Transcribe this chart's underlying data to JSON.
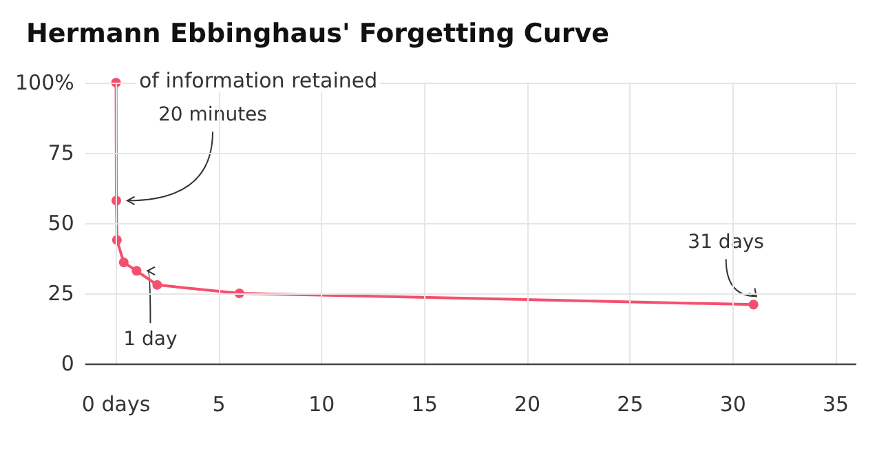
{
  "chart_data": {
    "type": "line",
    "title": "Hermann Ebbinghaus' Forgetting Curve",
    "ylabel": "of information retained",
    "x": [
      0,
      0.014,
      0.042,
      0.375,
      1,
      2,
      6,
      31
    ],
    "series": [
      {
        "color": "#f4506e",
        "values": [
          100,
          58,
          44,
          36,
          33,
          28,
          25,
          21
        ]
      }
    ],
    "xlim": [
      -1.5,
      36
    ],
    "xticks": [
      {
        "value": 0,
        "label": "0 days"
      },
      5,
      10,
      15,
      20,
      25,
      30,
      35
    ],
    "ylim": [
      0,
      100
    ],
    "yticks": [
      0,
      25,
      50,
      75,
      {
        "value": 100,
        "label": "100%"
      }
    ],
    "grid": true,
    "marker": "circle",
    "line_style": "solid",
    "annotations": [
      {
        "text": "20 minutes",
        "x": 0.014,
        "y": 58
      },
      {
        "text": "1 day",
        "x": 1,
        "y": 33
      },
      {
        "text": "31 days",
        "x": 31,
        "y": 21
      }
    ]
  }
}
